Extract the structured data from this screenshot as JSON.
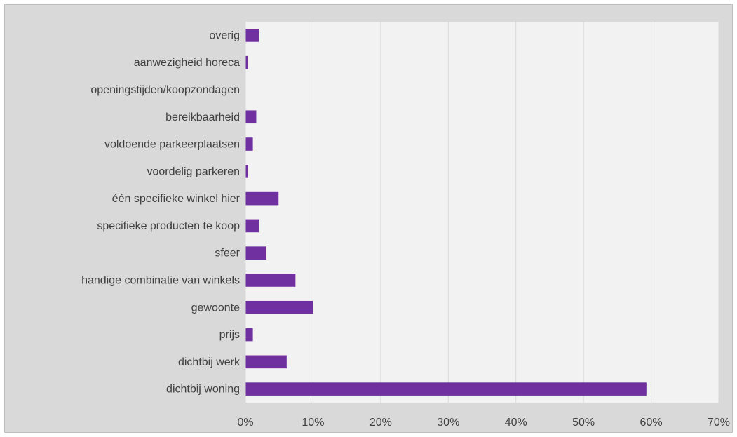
{
  "chart_data": {
    "type": "bar",
    "orientation": "horizontal",
    "categories": [
      "overig",
      "aanwezigheid horeca",
      "openingstijden/koopzondagen",
      "bereikbaarheid",
      "voldoende parkeerplaatsen",
      "voordelig parkeren",
      "één specifieke winkel hier",
      "specifieke producten te koop",
      "sfeer",
      "handige combinatie van winkels",
      "gewoonte",
      "prijs",
      "dichtbij werk",
      "dichtbij woning"
    ],
    "values": [
      2.0,
      0.4,
      0.0,
      1.6,
      1.1,
      0.4,
      4.9,
      2.0,
      3.1,
      7.4,
      10.0,
      1.1,
      6.1,
      59.3
    ],
    "unit": "%",
    "xlim": [
      0,
      70
    ],
    "xticks": [
      "0%",
      "10%",
      "20%",
      "30%",
      "40%",
      "50%",
      "60%",
      "70%"
    ],
    "tick_values": [
      0,
      10,
      20,
      30,
      40,
      50,
      60,
      70
    ],
    "grid": true,
    "legend": "none",
    "title": "",
    "xlabel": "",
    "ylabel": "",
    "colors": {
      "bar": "#7030a0",
      "plot_background": "#f2f2f2",
      "chart_background": "#d9d9d9",
      "gridline": "#d9d9d9",
      "text": "#404040"
    }
  }
}
